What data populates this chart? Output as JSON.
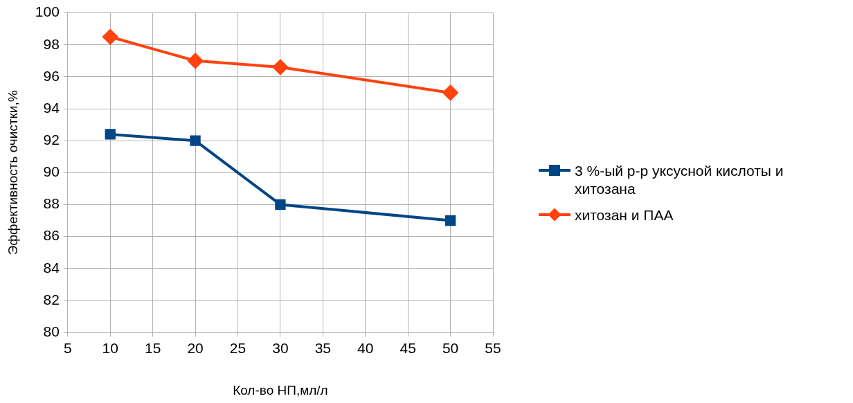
{
  "chart_data": {
    "type": "line",
    "xlabel": "Кол-во НП,мл/л",
    "ylabel": "Эффективность очистки,%",
    "series": [
      {
        "name": "3 %-ый р-р уксусной кислоты и хитозана",
        "color": "#004586",
        "marker": "square",
        "x": [
          10,
          20,
          30,
          50
        ],
        "values": [
          92.4,
          92.0,
          88.0,
          87.0
        ]
      },
      {
        "name": "хитозан и ПАА",
        "color": "#ff420e",
        "marker": "diamond",
        "x": [
          10,
          20,
          30,
          50
        ],
        "values": [
          98.5,
          97.0,
          96.6,
          95.0
        ]
      }
    ],
    "xlim": [
      5,
      55
    ],
    "xticks": [
      5,
      10,
      15,
      20,
      25,
      30,
      35,
      40,
      45,
      50,
      55
    ],
    "ylim": [
      80,
      100
    ],
    "yticks": [
      80,
      82,
      84,
      86,
      88,
      90,
      92,
      94,
      96,
      98,
      100
    ],
    "grid": true,
    "legend": "right",
    "line_style": "solid"
  }
}
